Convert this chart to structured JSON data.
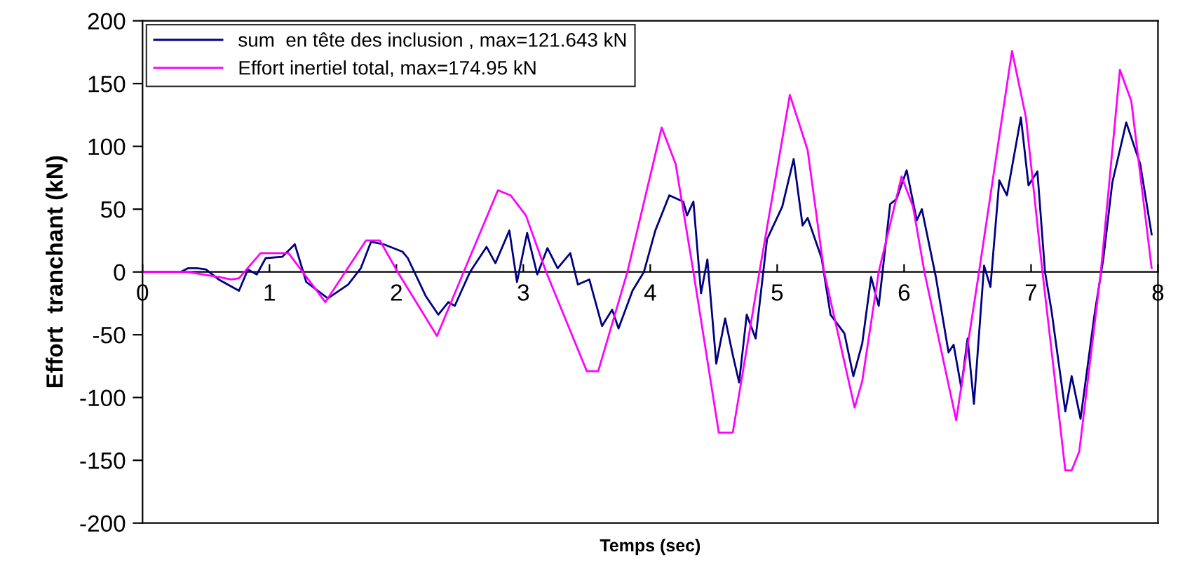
{
  "chart_data": {
    "type": "line",
    "xlabel": "Temps (sec)",
    "ylabel": "Effort  tranchant (kN)",
    "xlim": [
      0,
      8
    ],
    "ylim": [
      -200,
      200
    ],
    "xticks": [
      0,
      1,
      2,
      3,
      4,
      5,
      6,
      7,
      8
    ],
    "yticks": [
      -200,
      -150,
      -100,
      -50,
      0,
      50,
      100,
      150,
      200
    ],
    "grid": false,
    "legend": "top left",
    "marker": "none",
    "line_style": "solid",
    "series": [
      {
        "name": "sum  en tête des inclusion , max=121.643 kN",
        "color": "#000080",
        "x": [
          0,
          0.3,
          0.36,
          0.43,
          0.5,
          0.6,
          0.76,
          0.83,
          0.9,
          0.97,
          1.1,
          1.2,
          1.29,
          1.46,
          1.62,
          1.72,
          1.8,
          1.9,
          2.05,
          2.09,
          2.23,
          2.33,
          2.41,
          2.46,
          2.58,
          2.71,
          2.78,
          2.89,
          2.95,
          3.03,
          3.11,
          3.19,
          3.27,
          3.37,
          3.43,
          3.52,
          3.62,
          3.7,
          3.75,
          3.86,
          3.95,
          4.04,
          4.15,
          4.26,
          4.29,
          4.34,
          4.4,
          4.45,
          4.52,
          4.59,
          4.65,
          4.7,
          4.76,
          4.83,
          4.92,
          5.04,
          5.13,
          5.2,
          5.24,
          5.35,
          5.42,
          5.53,
          5.6,
          5.67,
          5.74,
          5.8,
          5.89,
          5.94,
          6.02,
          6.1,
          6.14,
          6.25,
          6.35,
          6.39,
          6.45,
          6.5,
          6.55,
          6.63,
          6.68,
          6.75,
          6.81,
          6.92,
          6.98,
          7.05,
          7.11,
          7.16,
          7.27,
          7.32,
          7.39,
          7.5,
          7.57,
          7.64,
          7.75,
          7.86,
          7.95
        ],
        "values": [
          0,
          0,
          3,
          3,
          2,
          -6,
          -15,
          2,
          -2,
          11,
          12,
          22,
          -8,
          -21,
          -10,
          3,
          24,
          22,
          16,
          11,
          -19,
          -34,
          -24,
          -27,
          0,
          20,
          7,
          33,
          -8,
          31,
          -2,
          19,
          3,
          15,
          -10,
          -6,
          -43,
          -30,
          -45,
          -15,
          0,
          33,
          61,
          56,
          45,
          56,
          -17,
          10,
          -73,
          -37,
          -66,
          -88,
          -34,
          -53,
          26,
          52,
          90,
          37,
          43,
          11,
          -34,
          -49,
          -83,
          -57,
          -4,
          -27,
          54,
          58,
          81,
          41,
          50,
          -4,
          -64,
          -58,
          -92,
          -53,
          -105,
          5,
          -12,
          73,
          61,
          123,
          69,
          80,
          0,
          -30,
          -111,
          -83,
          -117,
          -34,
          11,
          71,
          119,
          86,
          30
        ]
      },
      {
        "name": "Effort inertiel total, max=174.95 kN",
        "color": "#ff00ff",
        "x": [
          0,
          0.35,
          0.6,
          0.7,
          0.76,
          0.93,
          1.15,
          1.44,
          1.76,
          1.87,
          2.01,
          2.32,
          2.53,
          2.8,
          2.9,
          3.02,
          3.18,
          3.5,
          3.59,
          3.82,
          4.09,
          4.2,
          4.34,
          4.54,
          4.65,
          4.86,
          5.1,
          5.24,
          5.37,
          5.61,
          5.67,
          5.8,
          5.98,
          6.07,
          6.16,
          6.41,
          6.59,
          6.85,
          6.96,
          7.09,
          7.27,
          7.32,
          7.38,
          7.55,
          7.7,
          7.79,
          7.95
        ],
        "values": [
          0,
          0,
          -4,
          -6,
          -5,
          15,
          15,
          -24,
          25,
          25,
          0,
          -51,
          0,
          65,
          61,
          45,
          0,
          -79,
          -79,
          0,
          115,
          86,
          0,
          -128,
          -128,
          0,
          141,
          97,
          0,
          -108,
          -87,
          0,
          76,
          52,
          0,
          -118,
          0,
          176,
          123,
          0,
          -158,
          -158,
          -143,
          0,
          161,
          136,
          3
        ]
      }
    ]
  }
}
